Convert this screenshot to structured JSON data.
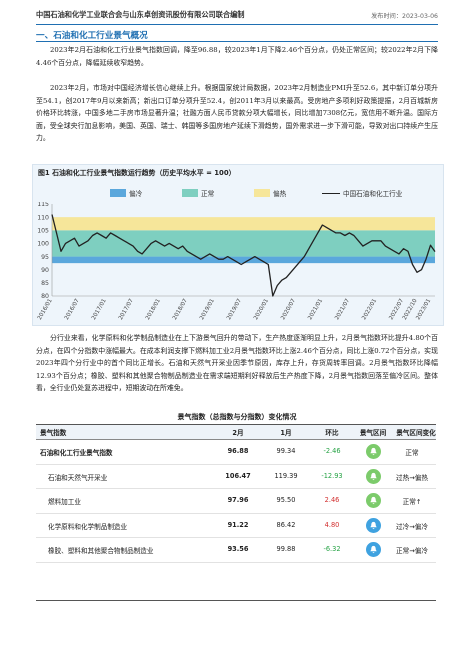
{
  "header": {
    "org": "中国石油和化学工业联合会与山东卓创资讯股份有限公司联合编制",
    "date": "发布时间：2023-03-06"
  },
  "section": {
    "title": "一、石油和化工行业景气概况"
  },
  "paragraphs": [
    "2023年2月石油和化工行业景气指数回调，降至96.88，较2023年1月下降2.46个百分点，仍处正常区间；较2022年2月下降4.46个百分点，降幅延续收窄趋势。",
    "2023年2月，市场对中国经济增长信心继续上升。根据国家统计局数据，2023年2月制造业PMI升至52.6，其中新订单分项升至54.1，创2017年9月以来新高；新出口订单分项升至52.4，创2011年3月以来最高。受房地产多项利好政策提振，2月百城新房价格环比转涨，中国多地二手房市场显著升温；社融方面人民币贷款分项大幅增长，同比增加7308亿元，宽信用不断升温。国际方面，受全球央行加息影响，美国、英国、瑞士、韩国等多国房地产延续下滑趋势，国外需求进一步下滑可能，导致对出口持续产生压力。",
    "分行业来看，化学原料和化学制品制造业在上下游景气回升的带动下，生产热度逐渐明显上升，2月景气指数环比提升4.80个百分点，在四个分指数中涨幅最大。在成本利润支撑下燃料加工业2月景气指数环比上涨2.46个百分点，同比上涨0.72个百分点，实现2023年四个分行业中的首个同比正增长。石油和天然气开采业因季节原因，库存上升，存货周转率回调。2月景气指数环比降幅12.93个百分点；橡胶、塑料和其他聚合物制品制造业在需求端短期利好释放后生产热度下降，2月景气指数回落至偏冷区间。整体看，全行业仍处复苏进程中，短期波动在所难免。"
  ],
  "chart": {
    "title": "图1 石油和化工行业景气指数运行趋势（历史平均水平 = 100）",
    "legend": {
      "cold": "偏冷",
      "normal": "正常",
      "hot": "偏热",
      "line": "中国石油和化工行业"
    },
    "colors": {
      "cold": "#5aa7dc",
      "normal": "#7ecfc0",
      "hot": "#f6e69a",
      "line": "#222222",
      "bg": "#eef5fb"
    }
  },
  "chart_data": {
    "type": "line",
    "title": "图1 石油和化工行业景气指数运行趋势（历史平均水平 = 100）",
    "ylim": [
      80,
      115
    ],
    "yticks": [
      80,
      85,
      90,
      95,
      100,
      105,
      110,
      115
    ],
    "bands": [
      {
        "name": "偏冷",
        "from": 92.5,
        "to": 95
      },
      {
        "name": "正常",
        "from": 95,
        "to": 105
      },
      {
        "name": "偏热",
        "from": 105,
        "to": 110
      }
    ],
    "xticks": [
      "2016/01",
      "2016/07",
      "2017/01",
      "2017/07",
      "2018/01",
      "2018/07",
      "2019/01",
      "2019/07",
      "2020/01",
      "2020/07",
      "2021/01",
      "2021/07",
      "2022/01",
      "2022/07",
      "2022/10",
      "2023/01"
    ],
    "series": [
      {
        "name": "中国石油和化工行业",
        "x": [
          "2016/01",
          "2016/02",
          "2016/03",
          "2016/04",
          "2016/05",
          "2016/06",
          "2016/07",
          "2016/08",
          "2016/09",
          "2016/10",
          "2016/11",
          "2016/12",
          "2017/01",
          "2017/02",
          "2017/03",
          "2017/04",
          "2017/05",
          "2017/06",
          "2017/07",
          "2017/08",
          "2017/09",
          "2017/10",
          "2017/11",
          "2017/12",
          "2018/01",
          "2018/02",
          "2018/03",
          "2018/04",
          "2018/05",
          "2018/06",
          "2018/07",
          "2018/08",
          "2018/09",
          "2018/10",
          "2018/11",
          "2018/12",
          "2019/01",
          "2019/02",
          "2019/03",
          "2019/04",
          "2019/05",
          "2019/06",
          "2019/07",
          "2019/08",
          "2019/09",
          "2019/10",
          "2019/11",
          "2019/12",
          "2020/01",
          "2020/02",
          "2020/03",
          "2020/04",
          "2020/05",
          "2020/06",
          "2020/07",
          "2020/08",
          "2020/09",
          "2020/10",
          "2020/11",
          "2020/12",
          "2021/01",
          "2021/02",
          "2021/03",
          "2021/04",
          "2021/05",
          "2021/06",
          "2021/07",
          "2021/08",
          "2021/09",
          "2021/10",
          "2021/11",
          "2021/12",
          "2022/01",
          "2022/02",
          "2022/03",
          "2022/04",
          "2022/05",
          "2022/06",
          "2022/07",
          "2022/08",
          "2022/09",
          "2022/10",
          "2022/11",
          "2022/12",
          "2023/01",
          "2023/02"
        ],
        "values": [
          111,
          104,
          97,
          100,
          101,
          102,
          99,
          100,
          101,
          103,
          104,
          103,
          102,
          104,
          103,
          102,
          101,
          100,
          99,
          97,
          96,
          98,
          100,
          101,
          100,
          99,
          100,
          99,
          98,
          99,
          97,
          96,
          95,
          94,
          95,
          96,
          95,
          94,
          94,
          95,
          94,
          93,
          92,
          93,
          94,
          95,
          94,
          93,
          92,
          80,
          84,
          86,
          87,
          89,
          91,
          93,
          95,
          98,
          101,
          104,
          107,
          106,
          105,
          104,
          104,
          103,
          104,
          103,
          101,
          99,
          100,
          101,
          101,
          101,
          99,
          98,
          97,
          96,
          98,
          97,
          92,
          89,
          90,
          94,
          99.34,
          96.88
        ]
      }
    ]
  },
  "table": {
    "title": "景气指数（总指数与分指数）变化情况",
    "headers": {
      "name": "景气指数",
      "feb": "2月",
      "jan": "1月",
      "change": "环比",
      "zone": "景气区间",
      "transition": "景气区间变化"
    },
    "rows": [
      {
        "name": "石油和化工行业景气指数",
        "feb": "96.88",
        "jan": "99.34",
        "change": "-2.46",
        "dir": "down",
        "zone": "green",
        "transition": "正常"
      },
      {
        "name": "石油和天然气开采业",
        "feb": "106.47",
        "jan": "119.39",
        "change": "-12.93",
        "dir": "down",
        "zone": "green",
        "transition": "过热→偏热"
      },
      {
        "name": "燃料加工业",
        "feb": "97.96",
        "jan": "95.50",
        "change": "2.46",
        "dir": "up",
        "zone": "green",
        "transition": "正常↑"
      },
      {
        "name": "化学原料和化学制品制造业",
        "feb": "91.22",
        "jan": "86.42",
        "change": "4.80",
        "dir": "up",
        "zone": "blue",
        "transition": "过冷→偏冷"
      },
      {
        "name": "橡胶、塑料和其他聚合物制品制造业",
        "feb": "93.56",
        "jan": "99.88",
        "change": "-6.32",
        "dir": "down",
        "zone": "blue",
        "transition": "正常→偏冷"
      }
    ]
  }
}
